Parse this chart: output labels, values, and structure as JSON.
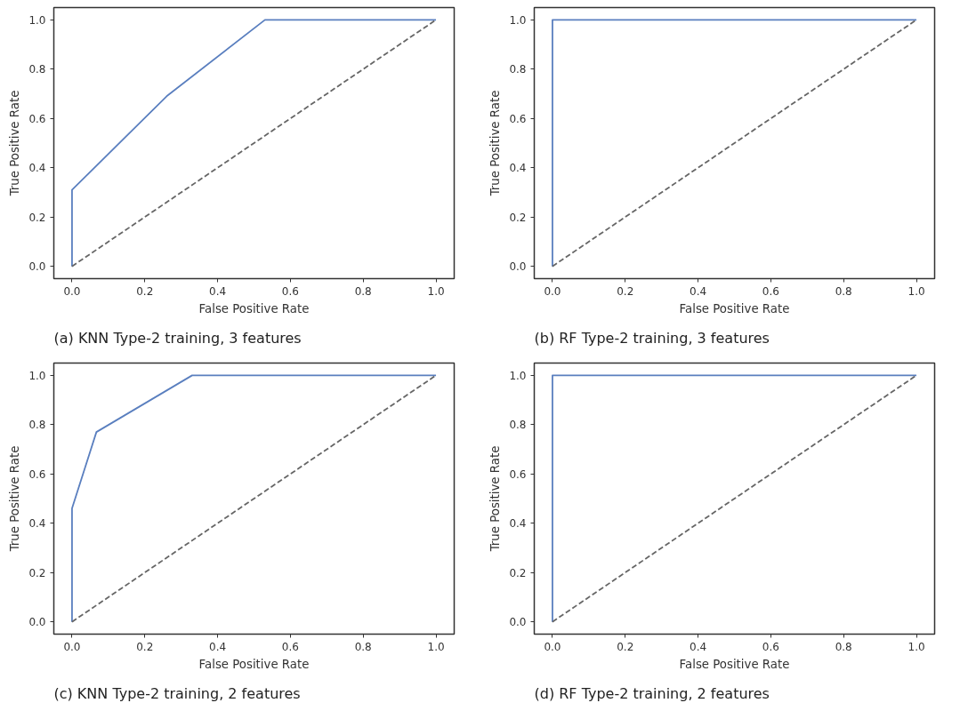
{
  "chart_data": [
    {
      "type": "line",
      "xlabel": "False Positive Rate",
      "ylabel": "True Positive Rate",
      "xlim": [
        -0.05,
        1.05
      ],
      "ylim": [
        -0.05,
        1.05
      ],
      "xticks": [
        {
          "value": 0,
          "label": "0.0"
        },
        {
          "value": 0.2,
          "label": "0.2"
        },
        {
          "value": 0.4,
          "label": "0.4"
        },
        {
          "value": 0.6,
          "label": "0.6"
        },
        {
          "value": 0.8,
          "label": "0.8"
        },
        {
          "value": 1,
          "label": "1.0"
        }
      ],
      "yticks": [
        {
          "value": 0,
          "label": "0.0"
        },
        {
          "value": 0.2,
          "label": "0.2"
        },
        {
          "value": 0.4,
          "label": "0.4"
        },
        {
          "value": 0.6,
          "label": "0.6"
        },
        {
          "value": 0.8,
          "label": "0.8"
        },
        {
          "value": 1,
          "label": "1.0"
        }
      ],
      "series": [
        {
          "color": "#5a7fbf",
          "x": [
            0,
            0,
            0.26,
            0.53,
            1
          ],
          "values": [
            0,
            0.31,
            0.69,
            1,
            1
          ]
        },
        {
          "color": "#666666",
          "line_style": "dashed",
          "x": [
            0,
            1
          ],
          "values": [
            0,
            1
          ]
        }
      ],
      "annotations": [
        "(a) KNN Type-2 training, 3 features"
      ]
    },
    {
      "type": "line",
      "xlabel": "False Positive Rate",
      "ylabel": "True Positive Rate",
      "xlim": [
        -0.05,
        1.05
      ],
      "ylim": [
        -0.05,
        1.05
      ],
      "xticks": [
        {
          "value": 0,
          "label": "0.0"
        },
        {
          "value": 0.2,
          "label": "0.2"
        },
        {
          "value": 0.4,
          "label": "0.4"
        },
        {
          "value": 0.6,
          "label": "0.6"
        },
        {
          "value": 0.8,
          "label": "0.8"
        },
        {
          "value": 1,
          "label": "1.0"
        }
      ],
      "yticks": [
        {
          "value": 0,
          "label": "0.0"
        },
        {
          "value": 0.2,
          "label": "0.2"
        },
        {
          "value": 0.4,
          "label": "0.4"
        },
        {
          "value": 0.6,
          "label": "0.6"
        },
        {
          "value": 0.8,
          "label": "0.8"
        },
        {
          "value": 1,
          "label": "1.0"
        }
      ],
      "series": [
        {
          "color": "#5a7fbf",
          "x": [
            0,
            0,
            1
          ],
          "values": [
            0,
            1,
            1
          ]
        },
        {
          "color": "#666666",
          "line_style": "dashed",
          "x": [
            0,
            1
          ],
          "values": [
            0,
            1
          ]
        }
      ],
      "annotations": [
        "(b) RF Type-2 training, 3 features"
      ]
    },
    {
      "type": "line",
      "xlabel": "False Positive Rate",
      "ylabel": "True Positive Rate",
      "xlim": [
        -0.05,
        1.05
      ],
      "ylim": [
        -0.05,
        1.05
      ],
      "xticks": [
        {
          "value": 0,
          "label": "0.0"
        },
        {
          "value": 0.2,
          "label": "0.2"
        },
        {
          "value": 0.4,
          "label": "0.4"
        },
        {
          "value": 0.6,
          "label": "0.6"
        },
        {
          "value": 0.8,
          "label": "0.8"
        },
        {
          "value": 1,
          "label": "1.0"
        }
      ],
      "yticks": [
        {
          "value": 0,
          "label": "0.0"
        },
        {
          "value": 0.2,
          "label": "0.2"
        },
        {
          "value": 0.4,
          "label": "0.4"
        },
        {
          "value": 0.6,
          "label": "0.6"
        },
        {
          "value": 0.8,
          "label": "0.8"
        },
        {
          "value": 1,
          "label": "1.0"
        }
      ],
      "series": [
        {
          "color": "#5a7fbf",
          "x": [
            0,
            0,
            0.067,
            0.33,
            1
          ],
          "values": [
            0,
            0.46,
            0.77,
            1,
            1
          ]
        },
        {
          "color": "#666666",
          "line_style": "dashed",
          "x": [
            0,
            1
          ],
          "values": [
            0,
            1
          ]
        }
      ],
      "annotations": [
        "(c) KNN Type-2 training, 2 features"
      ]
    },
    {
      "type": "line",
      "xlabel": "False Positive Rate",
      "ylabel": "True Positive Rate",
      "xlim": [
        -0.05,
        1.05
      ],
      "ylim": [
        -0.05,
        1.05
      ],
      "xticks": [
        {
          "value": 0,
          "label": "0.0"
        },
        {
          "value": 0.2,
          "label": "0.2"
        },
        {
          "value": 0.4,
          "label": "0.4"
        },
        {
          "value": 0.6,
          "label": "0.6"
        },
        {
          "value": 0.8,
          "label": "0.8"
        },
        {
          "value": 1,
          "label": "1.0"
        }
      ],
      "yticks": [
        {
          "value": 0,
          "label": "0.0"
        },
        {
          "value": 0.2,
          "label": "0.2"
        },
        {
          "value": 0.4,
          "label": "0.4"
        },
        {
          "value": 0.6,
          "label": "0.6"
        },
        {
          "value": 0.8,
          "label": "0.8"
        },
        {
          "value": 1,
          "label": "1.0"
        }
      ],
      "series": [
        {
          "color": "#5a7fbf",
          "x": [
            0,
            0,
            1
          ],
          "values": [
            0,
            1,
            1
          ]
        },
        {
          "color": "#666666",
          "line_style": "dashed",
          "x": [
            0,
            1
          ],
          "values": [
            0,
            1
          ]
        }
      ],
      "annotations": [
        "(d) RF Type-2 training, 2 features"
      ]
    }
  ]
}
